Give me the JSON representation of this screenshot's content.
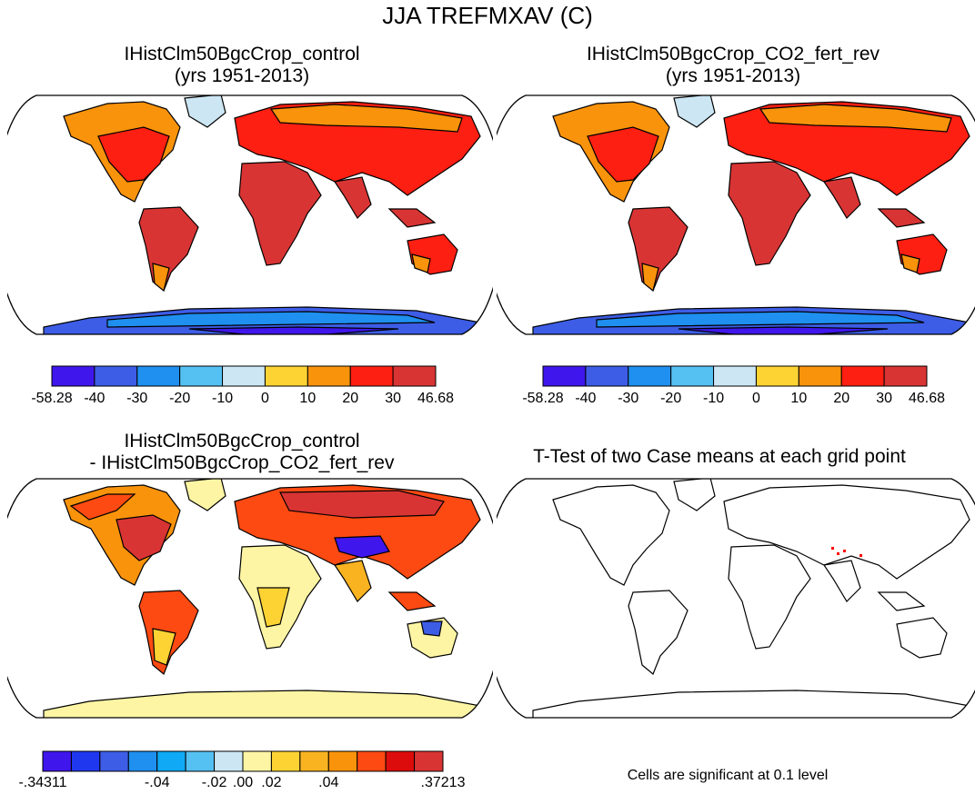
{
  "figure": {
    "title": "JJA TREFMXAV (C)"
  },
  "panels": {
    "top_left": {
      "title_line1": "IHistClm50BgcCrop_control",
      "title_line2": "(yrs 1951-2013)"
    },
    "top_right": {
      "title_line1": "IHistClm50BgcCrop_CO2_fert_rev",
      "title_line2": "(yrs 1951-2013)"
    },
    "bottom_left": {
      "title_line1": "IHistClm50BgcCrop_control",
      "title_line2": "- IHistClm50BgcCrop_CO2_fert_rev"
    },
    "bottom_right": {
      "title_line1": "T-Test of two Case means at each grid point",
      "footnote": "Cells are significant at 0.1 level"
    }
  },
  "colorbars": {
    "absolute": {
      "colors": [
        "#3f16ec",
        "#3d5de6",
        "#1f8ff0",
        "#55c0f2",
        "#cce6f4",
        "#fdd334",
        "#f9930b",
        "#fd1f12",
        "#d93434"
      ],
      "labels": [
        "-58.28",
        "-40",
        "-30",
        "-20",
        "-10",
        "0",
        "10",
        "20",
        "30",
        "46.68"
      ]
    },
    "difference": {
      "colors": [
        "#3f16ec",
        "#2037f0",
        "#3d5de6",
        "#1f8ff0",
        "#0fa9f5",
        "#55c0f2",
        "#cce6f4",
        "#fdf5a4",
        "#fdd334",
        "#f9b320",
        "#f9930b",
        "#fd4a12",
        "#dd0c0c",
        "#d93434"
      ],
      "labels": [
        "-.34311",
        "-.04",
        "-.02",
        ".00",
        ".02",
        ".04",
        ".37213"
      ]
    }
  },
  "legend": {
    "significance_color": "#ff0000"
  }
}
